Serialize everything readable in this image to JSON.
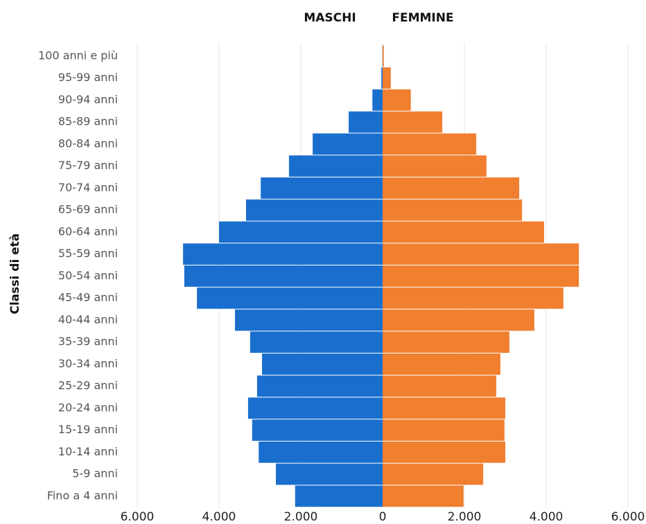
{
  "chart_data": {
    "type": "pyramid",
    "ylabel": "Classi di età",
    "categories": [
      "100 anni e più",
      "95-99 anni",
      "90-94 anni",
      "85-89 anni",
      "80-84 anni",
      "75-79 anni",
      "70-74 anni",
      "65-69 anni",
      "60-64 anni",
      "55-59 anni",
      "50-54 anni",
      "45-49 anni",
      "40-44 anni",
      "35-39 anni",
      "30-34 anni",
      "25-29 anni",
      "20-24 anni",
      "15-19 anni",
      "10-14 anni",
      "5-9 anni",
      "Fino a 4 anni"
    ],
    "series": [
      {
        "name": "MASCHI",
        "color": "#1a6fce",
        "side": "left",
        "values": [
          5,
          30,
          250,
          830,
          1710,
          2290,
          2980,
          3340,
          4000,
          4880,
          4850,
          4540,
          3610,
          3240,
          2950,
          3070,
          3290,
          3190,
          3030,
          2610,
          2140
        ]
      },
      {
        "name": "FEMMINE",
        "color": "#f07f30",
        "side": "right",
        "values": [
          30,
          200,
          690,
          1460,
          2290,
          2540,
          3340,
          3410,
          3950,
          4800,
          4800,
          4420,
          3710,
          3100,
          2880,
          2780,
          3000,
          2980,
          3000,
          2460,
          1980
        ]
      }
    ],
    "xlim": [
      -6000,
      6000
    ],
    "xticks": [
      {
        "value": -6000,
        "label": "6.000"
      },
      {
        "value": -4000,
        "label": "4.000"
      },
      {
        "value": -2000,
        "label": "2.000"
      },
      0,
      {
        "value": 2000,
        "label": "2.000"
      },
      {
        "value": 4000,
        "label": "4.000"
      },
      {
        "value": 6000,
        "label": "6.000"
      }
    ],
    "grid": true
  }
}
